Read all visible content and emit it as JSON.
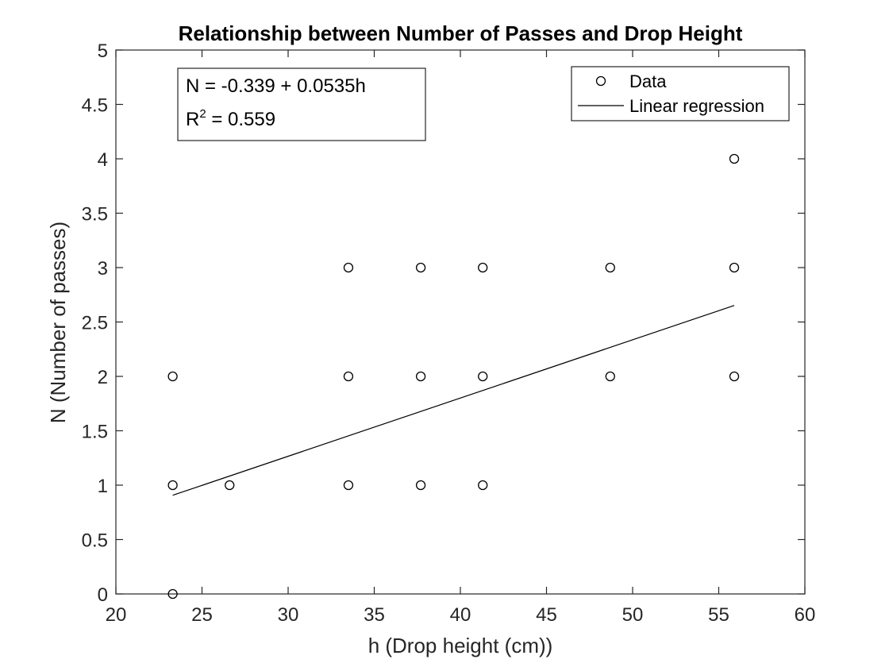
{
  "chart_data": {
    "type": "scatter",
    "title": "Relationship between Number of Passes and Drop Height",
    "xlabel": "h (Drop height (cm))",
    "ylabel": "N (Number of passes)",
    "xlim": [
      20,
      60
    ],
    "ylim": [
      0,
      5
    ],
    "xticks": [
      20,
      25,
      30,
      35,
      40,
      45,
      50,
      55,
      60
    ],
    "yticks": [
      0,
      0.5,
      1,
      1.5,
      2,
      2.5,
      3,
      3.5,
      4,
      4.5,
      5
    ],
    "ytick_labels": [
      "0",
      "0.5",
      "1",
      "1.5",
      "2",
      "2.5",
      "3",
      "3.5",
      "4",
      "4.5",
      "5"
    ],
    "grid": false,
    "legend_position": "top-right",
    "series": [
      {
        "name": "Data",
        "kind": "scatter",
        "marker": "circle-open",
        "color": "#000000",
        "points": [
          {
            "x": 23.3,
            "y": 0
          },
          {
            "x": 23.3,
            "y": 1
          },
          {
            "x": 23.3,
            "y": 2
          },
          {
            "x": 26.6,
            "y": 1
          },
          {
            "x": 33.5,
            "y": 1
          },
          {
            "x": 33.5,
            "y": 2
          },
          {
            "x": 33.5,
            "y": 3
          },
          {
            "x": 37.7,
            "y": 1
          },
          {
            "x": 37.7,
            "y": 2
          },
          {
            "x": 37.7,
            "y": 3
          },
          {
            "x": 41.3,
            "y": 1
          },
          {
            "x": 41.3,
            "y": 2
          },
          {
            "x": 41.3,
            "y": 3
          },
          {
            "x": 48.7,
            "y": 2
          },
          {
            "x": 48.7,
            "y": 3
          },
          {
            "x": 55.9,
            "y": 2
          },
          {
            "x": 55.9,
            "y": 3
          },
          {
            "x": 55.9,
            "y": 4
          }
        ]
      },
      {
        "name": "Linear regression",
        "kind": "line",
        "color": "#000000",
        "points": [
          {
            "x": 23.3,
            "y": 0.907
          },
          {
            "x": 55.9,
            "y": 2.652
          }
        ]
      }
    ],
    "annotation": {
      "line1": "N = -0.339 + 0.0535h",
      "line2_base": "R",
      "line2_sup": "2",
      "line2_rest": " = 0.559"
    }
  }
}
